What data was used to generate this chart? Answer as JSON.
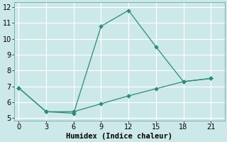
{
  "xlabel": "Humidex (Indice chaleur)",
  "line1_x": [
    0,
    3,
    6,
    9,
    12,
    15,
    18,
    21
  ],
  "line1_y": [
    6.9,
    5.4,
    5.3,
    10.8,
    11.8,
    9.5,
    7.3,
    7.5
  ],
  "line2_x": [
    0,
    3,
    6,
    9,
    12,
    15,
    18,
    21
  ],
  "line2_y": [
    6.9,
    5.4,
    5.4,
    5.9,
    6.4,
    6.85,
    7.3,
    7.5
  ],
  "line_color": "#2d8b77",
  "bg_color": "#cde8e8",
  "grid_color": "#b0d8d8",
  "xlim": [
    -0.5,
    22.5
  ],
  "ylim": [
    4.85,
    12.3
  ],
  "xticks": [
    0,
    3,
    6,
    9,
    12,
    15,
    18,
    21
  ],
  "yticks": [
    5,
    6,
    7,
    8,
    9,
    10,
    11,
    12
  ],
  "xlabel_fontsize": 7.5,
  "tick_fontsize": 7,
  "markersize": 2.8
}
